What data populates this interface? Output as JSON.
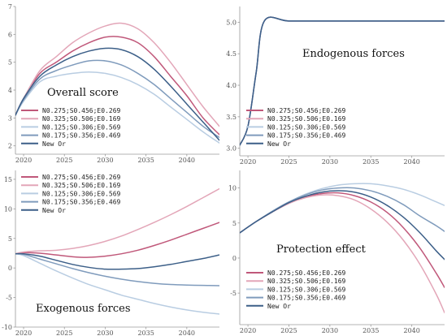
{
  "chart_data": [
    {
      "type": "line",
      "panel": "top-left",
      "title": "Overall score",
      "xlabel": "",
      "ylabel": "",
      "xlim": [
        2019,
        2044
      ],
      "ylim": [
        1.7,
        7
      ],
      "x_ticks": [
        2020,
        2025,
        2030,
        2035,
        2040
      ],
      "y_ticks": [
        2,
        3,
        4,
        5,
        6,
        7
      ],
      "grid": false,
      "legend": "lower-left",
      "series": [
        {
          "name": "N0.275;S0.456;E0.269",
          "color": "#c0587a",
          "x": [
            2019,
            2020,
            2022,
            2024,
            2026,
            2028,
            2030,
            2032,
            2034,
            2036,
            2038,
            2040,
            2042,
            2044
          ],
          "values": [
            3.1,
            3.7,
            4.6,
            5.0,
            5.4,
            5.7,
            5.9,
            5.9,
            5.7,
            5.2,
            4.5,
            3.8,
            3.0,
            2.4
          ]
        },
        {
          "name": "N0.325;S0.506;E0.169",
          "color": "#e3a6b8",
          "x": [
            2019,
            2020,
            2022,
            2024,
            2026,
            2028,
            2030,
            2032,
            2034,
            2036,
            2038,
            2040,
            2042,
            2044
          ],
          "values": [
            3.1,
            3.7,
            4.7,
            5.2,
            5.7,
            6.05,
            6.3,
            6.4,
            6.2,
            5.7,
            5.0,
            4.2,
            3.4,
            2.7
          ]
        },
        {
          "name": "N0.125;S0.306;E0.569",
          "color": "#b9cde2",
          "x": [
            2019,
            2020,
            2022,
            2024,
            2026,
            2028,
            2030,
            2032,
            2034,
            2036,
            2038,
            2040,
            2042,
            2044
          ],
          "values": [
            3.1,
            3.6,
            4.3,
            4.5,
            4.6,
            4.65,
            4.6,
            4.45,
            4.2,
            3.85,
            3.4,
            2.95,
            2.5,
            2.1
          ]
        },
        {
          "name": "N0.175;S0.356;E0.469",
          "color": "#7f9bbc",
          "x": [
            2019,
            2020,
            2022,
            2024,
            2026,
            2028,
            2030,
            2032,
            2034,
            2036,
            2038,
            2040,
            2042,
            2044
          ],
          "values": [
            3.1,
            3.65,
            4.4,
            4.7,
            4.9,
            5.05,
            5.05,
            4.9,
            4.6,
            4.2,
            3.7,
            3.2,
            2.7,
            2.3
          ]
        },
        {
          "name": "New Or",
          "color": "#3c5f88",
          "x": [
            2019,
            2020,
            2022,
            2024,
            2026,
            2028,
            2030,
            2032,
            2034,
            2036,
            2038,
            2040,
            2042,
            2044
          ],
          "values": [
            3.1,
            3.7,
            4.5,
            4.9,
            5.2,
            5.4,
            5.5,
            5.45,
            5.2,
            4.75,
            4.15,
            3.5,
            2.85,
            2.2
          ]
        }
      ]
    },
    {
      "type": "line",
      "panel": "top-right",
      "title": "Endogenous forces",
      "xlabel": "",
      "ylabel": "",
      "xlim": [
        2019,
        2044
      ],
      "ylim": [
        2.88,
        5.25
      ],
      "x_ticks": [
        2020,
        2025,
        2030,
        2035,
        2040
      ],
      "x_tick_labels": [
        "2020",
        "2025",
        "2030",
        "2035",
        "2040"
      ],
      "y_ticks": [
        3.0,
        3.5,
        4.0,
        4.5,
        5.0
      ],
      "y_tick_labels": [
        "3.0",
        "3.5",
        "4.0",
        "4.5",
        "5.0"
      ],
      "grid": false,
      "legend": "lower-left",
      "series": [
        {
          "name": "N0.275;S0.456;E0.269",
          "color": "#c0587a",
          "x": [
            2019,
            2020,
            2021,
            2022,
            2025,
            2030,
            2035,
            2040,
            2044
          ],
          "values": [
            3.05,
            3.35,
            4.2,
            5.02,
            5.02,
            5.02,
            5.02,
            5.02,
            5.02
          ]
        },
        {
          "name": "N0.325;S0.506;E0.169",
          "color": "#e3a6b8",
          "x": [
            2019,
            2020,
            2021,
            2022,
            2025,
            2030,
            2035,
            2040,
            2044
          ],
          "values": [
            3.05,
            3.35,
            4.2,
            5.02,
            5.02,
            5.02,
            5.02,
            5.02,
            5.02
          ]
        },
        {
          "name": "N0.125;S0.306;E0.569",
          "color": "#b9cde2",
          "x": [
            2019,
            2020,
            2021,
            2022,
            2025,
            2030,
            2035,
            2040,
            2044
          ],
          "values": [
            3.05,
            3.35,
            4.2,
            5.02,
            5.02,
            5.02,
            5.02,
            5.02,
            5.02
          ]
        },
        {
          "name": "N0.175;S0.356;E0.469",
          "color": "#7f9bbc",
          "x": [
            2019,
            2020,
            2021,
            2022,
            2025,
            2030,
            2035,
            2040,
            2044
          ],
          "values": [
            3.05,
            3.35,
            4.2,
            5.02,
            5.02,
            5.02,
            5.02,
            5.02,
            5.02
          ]
        },
        {
          "name": "New Or",
          "color": "#3c5f88",
          "x": [
            2019,
            2020,
            2021,
            2022,
            2025,
            2030,
            2035,
            2040,
            2044
          ],
          "values": [
            3.05,
            3.35,
            4.2,
            5.02,
            5.02,
            5.02,
            5.02,
            5.02,
            5.02
          ]
        }
      ]
    },
    {
      "type": "line",
      "panel": "bottom-left",
      "title": "Exogenous forces",
      "xlabel": "",
      "ylabel": "",
      "xlim": [
        2019,
        2044
      ],
      "ylim": [
        -10,
        16.5
      ],
      "x_ticks": [
        2020,
        2025,
        2030,
        2035,
        2040
      ],
      "y_ticks": [
        -10,
        -5,
        0,
        5,
        10,
        15
      ],
      "grid": false,
      "legend": "upper-left",
      "series": [
        {
          "name": "N0.275;S0.456;E0.269",
          "color": "#c0587a",
          "x": [
            2019,
            2020,
            2022,
            2024,
            2026,
            2028,
            2030,
            2032,
            2034,
            2036,
            2038,
            2040,
            2042,
            2044
          ],
          "values": [
            2.4,
            2.6,
            2.5,
            2.2,
            1.9,
            1.8,
            2.0,
            2.4,
            3.0,
            3.8,
            4.7,
            5.7,
            6.7,
            7.7
          ]
        },
        {
          "name": "N0.325;S0.506;E0.169",
          "color": "#e3a6b8",
          "x": [
            2019,
            2020,
            2022,
            2024,
            2026,
            2028,
            2030,
            2032,
            2034,
            2036,
            2038,
            2040,
            2042,
            2044
          ],
          "values": [
            2.4,
            2.7,
            2.9,
            3.0,
            3.3,
            3.8,
            4.5,
            5.4,
            6.5,
            7.7,
            9.0,
            10.4,
            11.9,
            13.4
          ]
        },
        {
          "name": "N0.125;S0.306;E0.569",
          "color": "#b9cde2",
          "x": [
            2019,
            2020,
            2022,
            2024,
            2026,
            2028,
            2030,
            2032,
            2034,
            2036,
            2038,
            2040,
            2042,
            2044
          ],
          "values": [
            2.4,
            2.1,
            0.8,
            -0.5,
            -1.7,
            -2.8,
            -3.7,
            -4.6,
            -5.3,
            -6.0,
            -6.6,
            -7.1,
            -7.5,
            -7.8
          ]
        },
        {
          "name": "N0.175;S0.356;E0.469",
          "color": "#7f9bbc",
          "x": [
            2019,
            2020,
            2022,
            2024,
            2026,
            2028,
            2030,
            2032,
            2034,
            2036,
            2038,
            2040,
            2042,
            2044
          ],
          "values": [
            2.4,
            2.3,
            1.5,
            0.7,
            -0.1,
            -0.8,
            -1.4,
            -1.9,
            -2.3,
            -2.6,
            -2.8,
            -2.9,
            -2.95,
            -3.0
          ]
        },
        {
          "name": "New Or",
          "color": "#3c5f88",
          "x": [
            2019,
            2020,
            2022,
            2024,
            2026,
            2028,
            2030,
            2032,
            2034,
            2036,
            2038,
            2040,
            2042,
            2044
          ],
          "values": [
            2.4,
            2.4,
            2.0,
            1.3,
            0.6,
            0.1,
            -0.2,
            -0.2,
            -0.1,
            0.2,
            0.6,
            1.1,
            1.6,
            2.2
          ]
        }
      ]
    },
    {
      "type": "line",
      "panel": "bottom-right",
      "title": "Protection effect",
      "xlabel": "",
      "ylabel": "",
      "xlim": [
        2019,
        2044
      ],
      "ylim": [
        -9.5,
        12.5
      ],
      "x_ticks": [
        2020,
        2025,
        2030,
        2035,
        2040
      ],
      "y_ticks": [
        -5,
        0,
        5,
        10
      ],
      "grid": false,
      "legend": "lower-left",
      "series": [
        {
          "name": "N0.275;S0.456;E0.269",
          "color": "#c0587a",
          "x": [
            2019,
            2021,
            2023,
            2025,
            2027,
            2029,
            2031,
            2033,
            2035,
            2037,
            2039,
            2041,
            2043,
            2044
          ],
          "values": [
            3.6,
            5.2,
            6.6,
            7.8,
            8.7,
            9.2,
            9.3,
            8.9,
            8.0,
            6.5,
            4.3,
            1.4,
            -2.2,
            -4.2
          ]
        },
        {
          "name": "N0.325;S0.506;E0.169",
          "color": "#e3a6b8",
          "x": [
            2019,
            2021,
            2023,
            2025,
            2027,
            2029,
            2031,
            2033,
            2035,
            2037,
            2039,
            2041,
            2043,
            2044
          ],
          "values": [
            3.6,
            5.2,
            6.6,
            7.8,
            8.6,
            9.0,
            8.9,
            8.3,
            7.0,
            5.1,
            2.5,
            -0.9,
            -5.2,
            -7.8
          ]
        },
        {
          "name": "N0.125;S0.306;E0.569",
          "color": "#b9cde2",
          "x": [
            2019,
            2021,
            2023,
            2025,
            2027,
            2029,
            2031,
            2033,
            2035,
            2037,
            2039,
            2041,
            2043,
            2044
          ],
          "values": [
            3.6,
            5.2,
            6.7,
            8.0,
            9.1,
            9.9,
            10.4,
            10.6,
            10.6,
            10.3,
            9.8,
            9.0,
            8.0,
            7.5
          ]
        },
        {
          "name": "N0.175;S0.356;E0.469",
          "color": "#7f9bbc",
          "x": [
            2019,
            2021,
            2023,
            2025,
            2027,
            2029,
            2031,
            2033,
            2035,
            2037,
            2039,
            2041,
            2043,
            2044
          ],
          "values": [
            3.6,
            5.2,
            6.7,
            8.0,
            9.0,
            9.7,
            10.0,
            10.0,
            9.6,
            8.8,
            7.6,
            6.0,
            4.6,
            3.8
          ]
        },
        {
          "name": "New Or",
          "color": "#3c5f88",
          "x": [
            2019,
            2021,
            2023,
            2025,
            2027,
            2029,
            2031,
            2033,
            2035,
            2037,
            2039,
            2041,
            2043,
            2044
          ],
          "values": [
            3.6,
            5.2,
            6.6,
            7.9,
            8.8,
            9.4,
            9.6,
            9.4,
            8.7,
            7.5,
            5.8,
            3.6,
            1.0,
            -0.2
          ]
        }
      ]
    }
  ]
}
